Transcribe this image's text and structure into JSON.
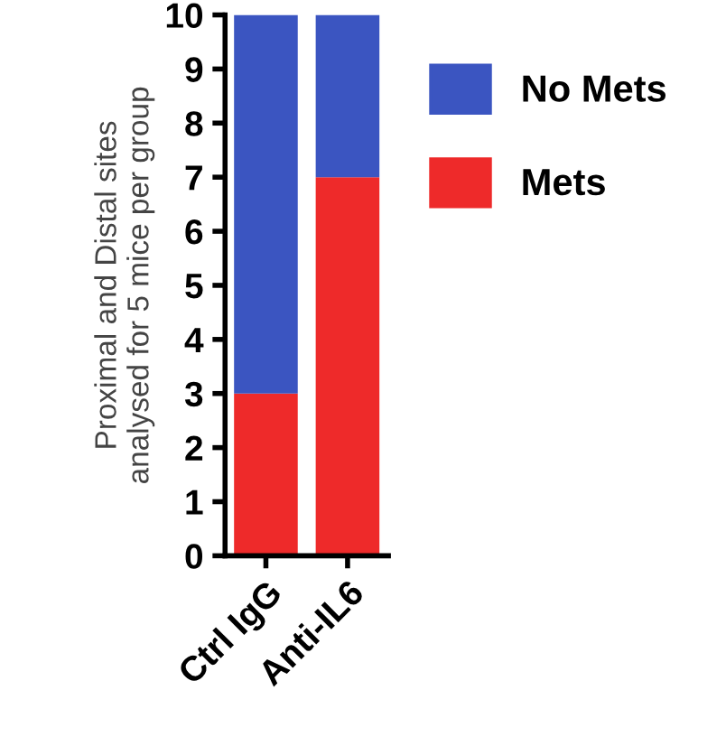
{
  "chart_data": {
    "type": "bar",
    "stacked": true,
    "ylabel": "Proximal and Distal sites\nanalysed for 5 mice per group",
    "categories": [
      "Ctrl IgG",
      "Anti-IL6"
    ],
    "series": [
      {
        "name": "Mets",
        "color": "#ee2a2a",
        "values": [
          3,
          7
        ]
      },
      {
        "name": "No Mets",
        "color": "#3b55c1",
        "values": [
          7,
          3
        ]
      }
    ],
    "ylim": [
      0,
      10
    ],
    "yticks": [
      0,
      1,
      2,
      3,
      4,
      5,
      6,
      7,
      8,
      9,
      10
    ],
    "grid": false,
    "legend": "top right"
  }
}
